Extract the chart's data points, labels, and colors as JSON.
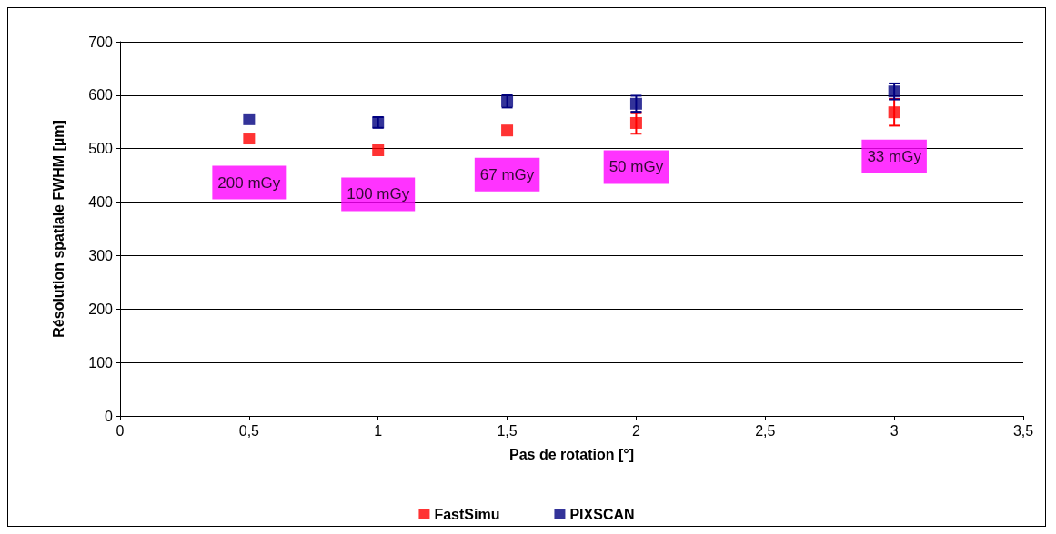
{
  "chart_data": {
    "type": "scatter",
    "xlabel": "Pas de rotation [°]",
    "ylabel": "Résolution spatiale FWHM [µm]",
    "x": [
      0.5,
      1,
      1.5,
      2,
      3
    ],
    "series": [
      {
        "name": "FastSimu",
        "color": "#ff0000",
        "values": [
          519,
          497,
          534,
          548,
          568
        ],
        "errors": [
          null,
          null,
          null,
          20,
          25
        ]
      },
      {
        "name": "PIXSCAN",
        "color": "#000080",
        "values": [
          555,
          549,
          589,
          584,
          607
        ],
        "errors": [
          null,
          10,
          12,
          15,
          15
        ]
      }
    ],
    "xlim": [
      0,
      3.5
    ],
    "xticks": [
      {
        "value": 0,
        "label": "0"
      },
      {
        "value": 0.5,
        "label": "0,5"
      },
      {
        "value": 1,
        "label": "1"
      },
      {
        "value": 1.5,
        "label": "1,5"
      },
      {
        "value": 2,
        "label": "2"
      },
      {
        "value": 2.5,
        "label": "2,5"
      },
      {
        "value": 3,
        "label": "3"
      },
      {
        "value": 3.5,
        "label": "3,5"
      }
    ],
    "ylim": [
      0,
      700
    ],
    "yticks": [
      0,
      100,
      200,
      300,
      400,
      500,
      600,
      700
    ],
    "annotations": [
      "200 mGy",
      "100 mGy",
      "67 mGy",
      "50 mGy",
      "33 mGy"
    ],
    "grid": "y",
    "legend": "bottom",
    "marker": "square"
  }
}
